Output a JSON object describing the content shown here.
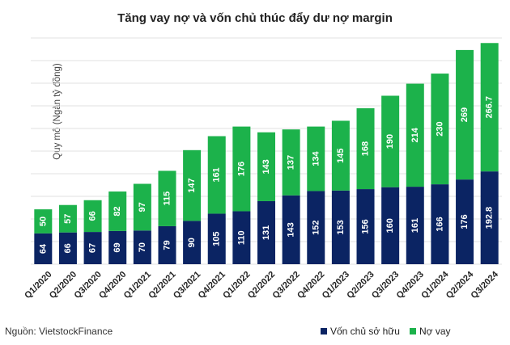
{
  "chart_data": {
    "type": "bar",
    "stacked": true,
    "title": "Tăng vay nợ và vốn chủ thúc đẩy dư nợ margin",
    "ylabel": "Quy mô (Ngàn tỷ đồng)",
    "xlabel": "",
    "ylim": [
      0,
      470
    ],
    "grid": true,
    "legend_position": "bottom-right",
    "categories": [
      "Q1/2020",
      "Q2/2020",
      "Q3/2020",
      "Q4/2020",
      "Q1/2021",
      "Q2/2021",
      "Q3/2021",
      "Q4/2021",
      "Q1/2022",
      "Q2/2022",
      "Q3/2022",
      "Q4/2022",
      "Q1/2023",
      "Q2/2023",
      "Q3/2023",
      "Q4/2023",
      "Q1/2024",
      "Q2/2024",
      "Q3/2024"
    ],
    "series": [
      {
        "name": "Vốn chủ sở hữu",
        "color": "#0b2463",
        "values": [
          64,
          66,
          67,
          69,
          70,
          79,
          90,
          105,
          110,
          131,
          143,
          152,
          153,
          156,
          160,
          161,
          166,
          176,
          192.8
        ],
        "labels": [
          "64",
          "66",
          "67",
          "69",
          "70",
          "79",
          "90",
          "105",
          "110",
          "131",
          "143",
          "152",
          "153",
          "156",
          "160",
          "161",
          "166",
          "176",
          "192.8"
        ]
      },
      {
        "name": "Nợ vay",
        "color": "#1cb24b",
        "values": [
          50,
          57,
          66,
          82,
          97,
          115,
          147,
          161,
          176,
          143,
          137,
          134,
          145,
          168,
          190,
          214,
          230,
          269,
          266.7
        ],
        "labels": [
          "50",
          "57",
          "66",
          "82",
          "97",
          "115",
          "147",
          "161",
          "176",
          "143",
          "137",
          "134",
          "145",
          "168",
          "190",
          "214",
          "230",
          "269",
          "266.7"
        ]
      }
    ]
  },
  "source": "Nguồn: VietstockFinance"
}
